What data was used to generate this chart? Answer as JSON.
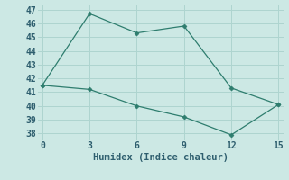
{
  "line1_x": [
    0,
    3,
    6,
    9,
    12,
    15
  ],
  "line1_y": [
    41.5,
    46.7,
    45.3,
    45.8,
    41.3,
    40.1
  ],
  "line2_x": [
    0,
    3,
    6,
    9,
    12,
    15
  ],
  "line2_y": [
    41.5,
    41.2,
    40.0,
    39.2,
    37.9,
    40.1
  ],
  "line_color": "#2e7d6e",
  "bg_color": "#cce8e4",
  "grid_color": "#aed4cf",
  "xlabel": "Humidex (Indice chaleur)",
  "xlim": [
    -0.3,
    15.3
  ],
  "ylim": [
    37.5,
    47.3
  ],
  "xticks": [
    0,
    3,
    6,
    9,
    12,
    15
  ],
  "yticks": [
    38,
    39,
    40,
    41,
    42,
    43,
    44,
    45,
    46,
    47
  ],
  "font_color": "#2e5e6e",
  "xlabel_fontsize": 7.5,
  "tick_fontsize": 7
}
